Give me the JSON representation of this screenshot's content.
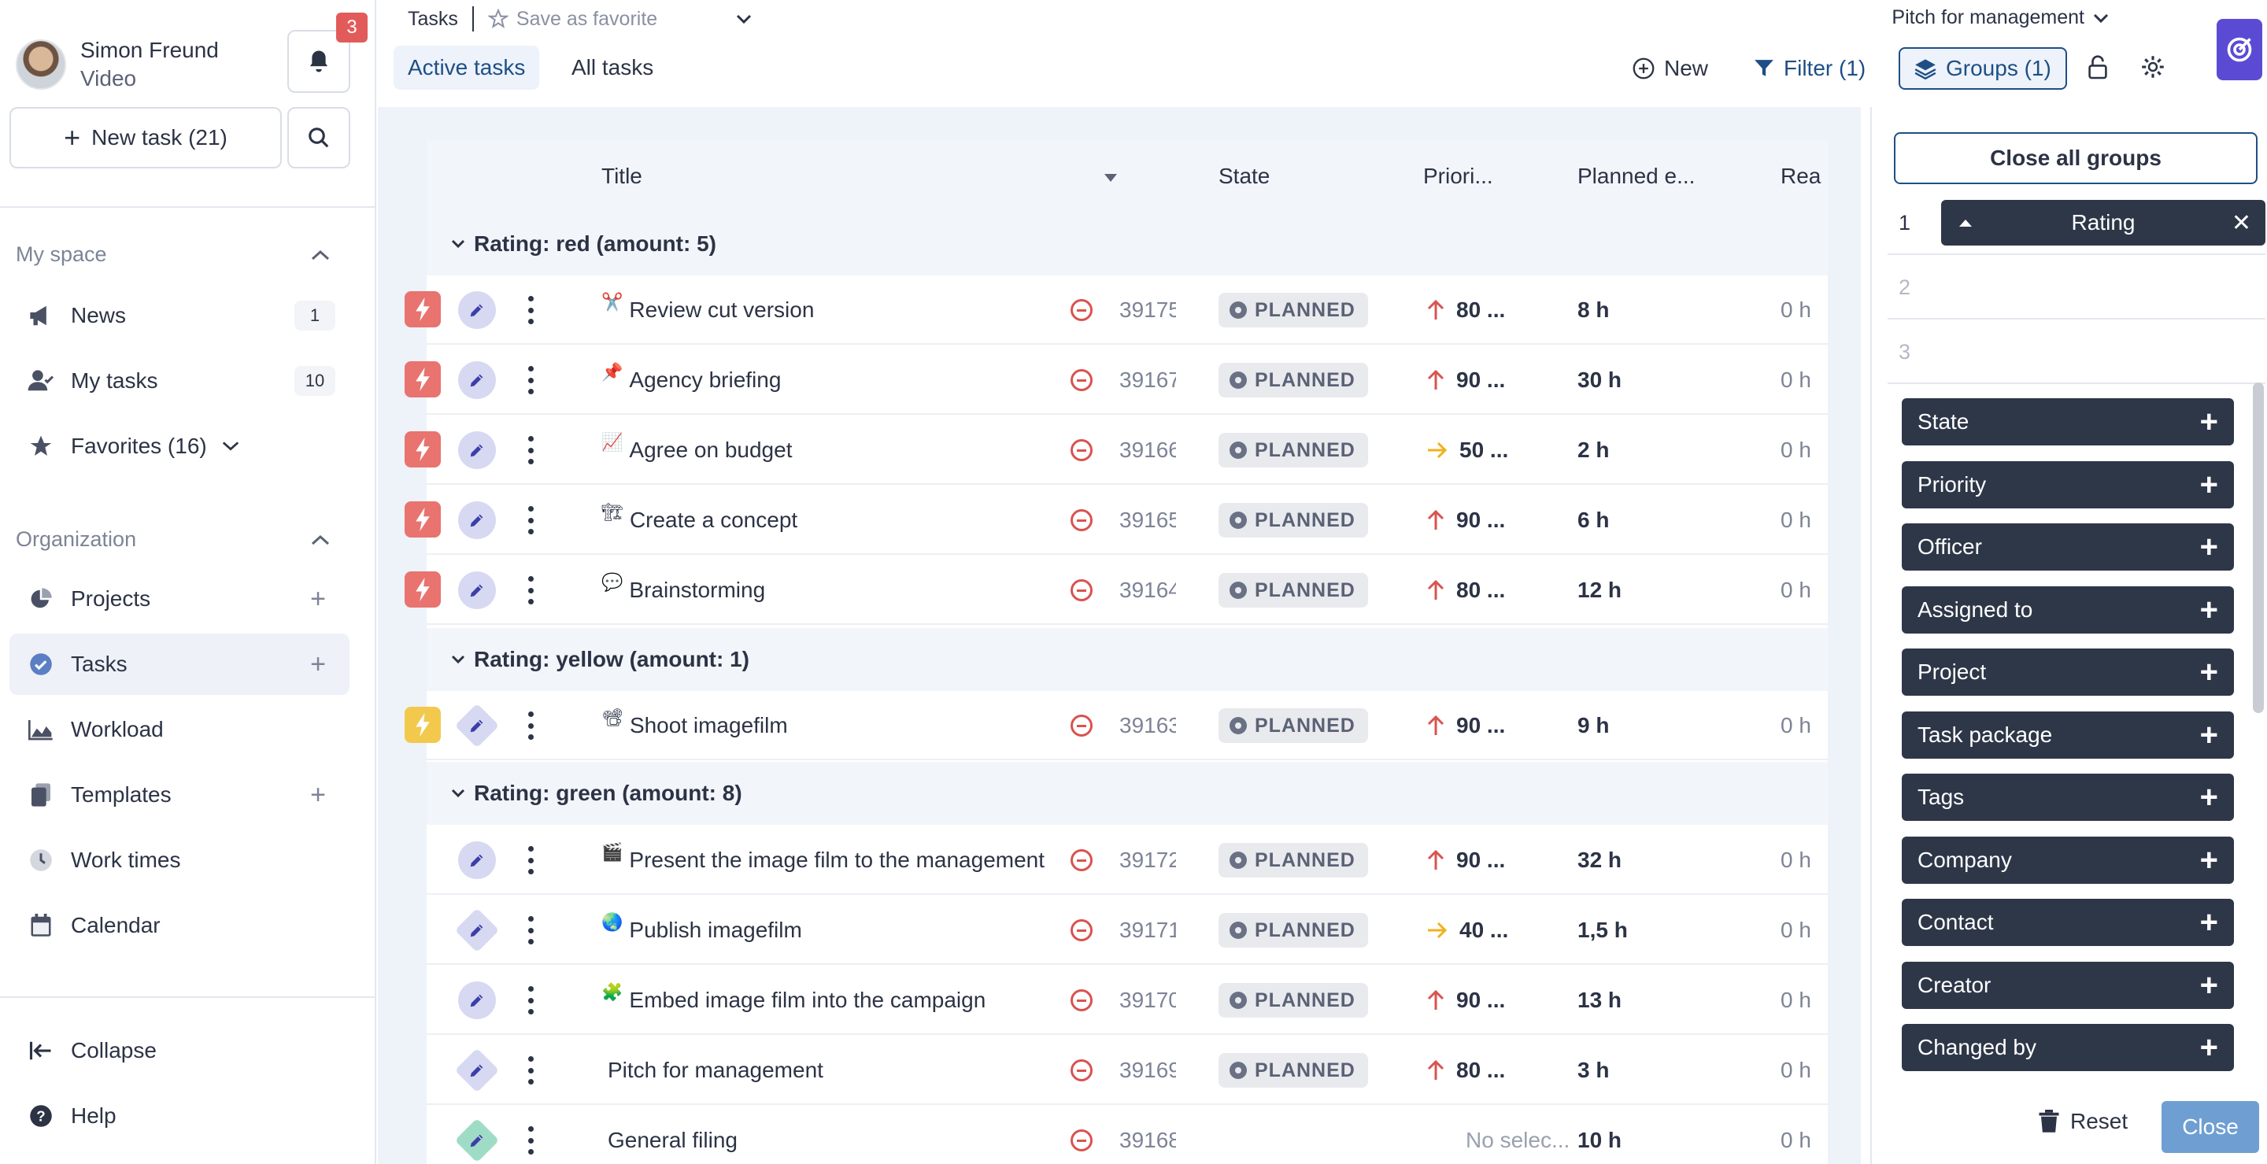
{
  "user": {
    "name": "Simon Freund",
    "role": "Video",
    "notifications": "3"
  },
  "sidebar": {
    "new_task_label": "New task (21)",
    "my_space_label": "My space",
    "organization_label": "Organization",
    "items": [
      {
        "label": "News",
        "count": "1"
      },
      {
        "label": "My tasks",
        "count": "10"
      },
      {
        "label": "Favorites (16)"
      },
      {
        "label": "Projects"
      },
      {
        "label": "Tasks"
      },
      {
        "label": "Workload"
      },
      {
        "label": "Templates"
      },
      {
        "label": "Work times"
      },
      {
        "label": "Calendar"
      }
    ],
    "collapse_label": "Collapse",
    "help_label": "Help"
  },
  "topbar": {
    "breadcrumb": "Tasks",
    "save_favorite": "Save as favorite",
    "view_name": "Pitch for management",
    "tabs": [
      "Active tasks",
      "All tasks"
    ],
    "new_label": "New",
    "filter_label": "Filter (1)",
    "groups_label": "Groups (1)"
  },
  "table": {
    "columns": {
      "title": "Title",
      "state": "State",
      "priority": "Priori...",
      "planned": "Planned e...",
      "real": "Rea"
    },
    "groups": [
      {
        "label": "Rating: red (amount: 5)"
      },
      {
        "label": "Rating: yellow (amount: 1)"
      },
      {
        "label": "Rating: green (amount: 8)"
      }
    ],
    "rows": [
      {
        "emoji": "✂️",
        "title": "Review cut version",
        "id": "39175",
        "state": "PLANNED",
        "priority": "80 ...",
        "planned": "8 h",
        "real": "0 h"
      },
      {
        "emoji": "📌",
        "title": "Agency briefing",
        "id": "39167",
        "state": "PLANNED",
        "priority": "90 ...",
        "planned": "30 h",
        "real": "0 h"
      },
      {
        "emoji": "📈",
        "title": "Agree on budget",
        "id": "39166",
        "state": "PLANNED",
        "priority": "50 ...",
        "planned": "2 h",
        "real": "0 h"
      },
      {
        "emoji": "🏗",
        "title": "Create a concept",
        "id": "39165",
        "state": "PLANNED",
        "priority": "90 ...",
        "planned": "6 h",
        "real": "0 h"
      },
      {
        "emoji": "💬",
        "title": "Brainstorming",
        "id": "39164",
        "state": "PLANNED",
        "priority": "80 ...",
        "planned": "12 h",
        "real": "0 h"
      },
      {
        "emoji": "📽",
        "title": "Shoot imagefilm",
        "id": "39163",
        "state": "PLANNED",
        "priority": "90 ...",
        "planned": "9 h",
        "real": "0 h"
      },
      {
        "emoji": "🎬",
        "title": "Present the image film to the management",
        "id": "39172",
        "state": "PLANNED",
        "priority": "90 ...",
        "planned": "32 h",
        "real": "0 h"
      },
      {
        "emoji": "🌏",
        "title": "Publish imagefilm",
        "id": "39171",
        "state": "PLANNED",
        "priority": "40 ...",
        "planned": "1,5 h",
        "real": "0 h"
      },
      {
        "emoji": "🧩",
        "title": "Embed image film into the campaign",
        "id": "39170",
        "state": "PLANNED",
        "priority": "90 ...",
        "planned": "13 h",
        "real": "0 h"
      },
      {
        "emoji": "",
        "title": "Pitch for management",
        "id": "39169",
        "state": "PLANNED",
        "priority": "80 ...",
        "planned": "3 h",
        "real": "0 h"
      },
      {
        "emoji": "",
        "title": "General filing",
        "id": "39168",
        "state": "No selec...",
        "priority": "",
        "planned": "10 h",
        "real": "0 h"
      }
    ]
  },
  "groups_panel": {
    "close_all_label": "Close all groups",
    "slots": [
      {
        "num": "1",
        "value": "Rating"
      },
      {
        "num": "2"
      },
      {
        "num": "3"
      }
    ],
    "options": [
      "State",
      "Priority",
      "Officer",
      "Assigned to",
      "Project",
      "Task package",
      "Tags",
      "Company",
      "Contact",
      "Creator",
      "Changed by"
    ],
    "reset_label": "Reset",
    "close_label": "Close"
  },
  "colors": {
    "accent": "#1d4f86",
    "rating_red": "#e8736f",
    "rating_yellow": "#f2c94c",
    "brand": "#5b4bd4",
    "prio_up": "#d9534f",
    "prio_medium": "#f2b01e"
  }
}
